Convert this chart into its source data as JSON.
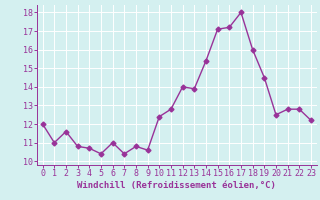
{
  "x": [
    0,
    1,
    2,
    3,
    4,
    5,
    6,
    7,
    8,
    9,
    10,
    11,
    12,
    13,
    14,
    15,
    16,
    17,
    18,
    19,
    20,
    21,
    22,
    23
  ],
  "y": [
    12.0,
    11.0,
    11.6,
    10.8,
    10.7,
    10.4,
    11.0,
    10.4,
    10.8,
    10.6,
    12.4,
    12.8,
    14.0,
    13.9,
    15.4,
    17.1,
    17.2,
    18.0,
    16.0,
    14.5,
    12.5,
    12.8,
    12.8,
    12.2
  ],
  "line_color": "#993399",
  "marker": "D",
  "marker_size": 2.5,
  "linewidth": 1.0,
  "xlabel": "Windchill (Refroidissement éolien,°C)",
  "xlabel_fontsize": 6.5,
  "ylabel_ticks": [
    10,
    11,
    12,
    13,
    14,
    15,
    16,
    17,
    18
  ],
  "xlim": [
    -0.5,
    23.5
  ],
  "ylim": [
    9.8,
    18.4
  ],
  "background_color": "#d4f0f0",
  "grid_color": "#ffffff",
  "tick_label_fontsize": 6.0,
  "xtick_labels": [
    "0",
    "1",
    "2",
    "3",
    "4",
    "5",
    "6",
    "7",
    "8",
    "9",
    "10",
    "11",
    "12",
    "13",
    "14",
    "15",
    "16",
    "17",
    "18",
    "19",
    "20",
    "21",
    "22",
    "23"
  ]
}
